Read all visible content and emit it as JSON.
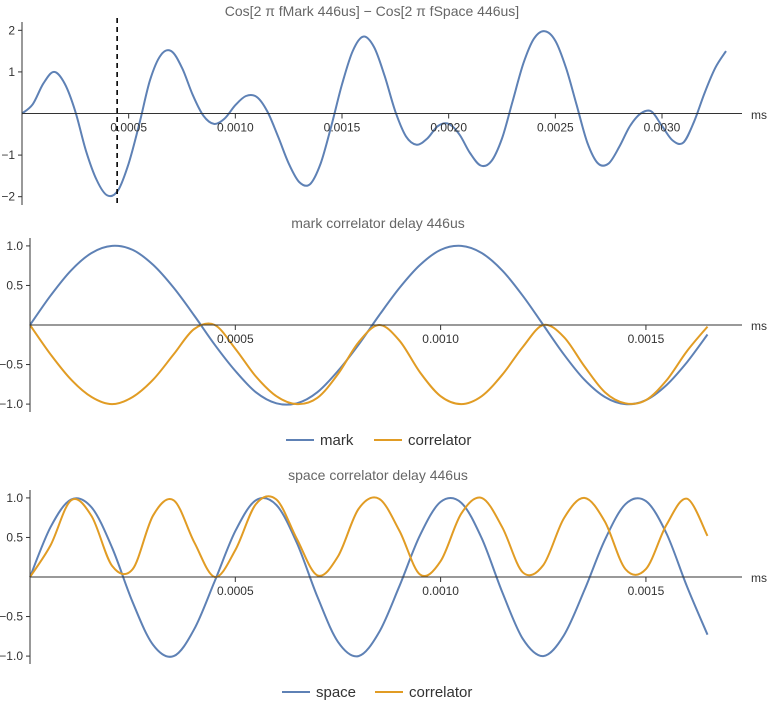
{
  "chart_data": [
    {
      "type": "line",
      "title": "Cos[2 π fMark  446us] −  Cos[2 π fSpace  446us]",
      "xunit": "ms",
      "xlim": [
        0,
        0.0033
      ],
      "ylim": [
        -2.2,
        2.2
      ],
      "xticks": [
        0.0005,
        0.001,
        0.0015,
        0.002,
        0.0025,
        0.003
      ],
      "xtick_labels": [
        "0.0005",
        "0.0010",
        "0.0015",
        "0.0020",
        "0.0025",
        "0.0030"
      ],
      "yticks": [
        2,
        1,
        -1,
        -2
      ],
      "ytick_labels": [
        "2",
        "1",
        "−1",
        "−2"
      ],
      "marker_line_x": 0.000446,
      "series": [
        {
          "color": "#5e81b5",
          "x": [
            0,
            5e-05,
            0.0001,
            0.00015,
            0.0002,
            0.00025,
            0.0003,
            0.00035,
            0.0004,
            0.00045,
            0.0005,
            0.00055,
            0.0006,
            0.00065,
            0.0007,
            0.00075,
            0.0008,
            0.00085,
            0.0009,
            0.00095,
            0.001,
            0.00105,
            0.0011,
            0.00115,
            0.0012,
            0.00125,
            0.0013,
            0.00135,
            0.0014,
            0.00145,
            0.0015,
            0.00155,
            0.0016,
            0.00165,
            0.0017,
            0.00175,
            0.0018,
            0.00185,
            0.0019,
            0.00195,
            0.002,
            0.00205,
            0.0021,
            0.00215,
            0.0022,
            0.00225,
            0.0023,
            0.00235,
            0.0024,
            0.00245,
            0.0025,
            0.00255,
            0.0026,
            0.00265,
            0.0027,
            0.00275,
            0.0028,
            0.00285,
            0.0029,
            0.00295,
            0.003,
            0.00305,
            0.0031,
            0.00315,
            0.0032,
            0.00325,
            0.0033
          ],
          "y": [
            0,
            0.22,
            0.72,
            1.0,
            0.72,
            0.05,
            -0.9,
            -1.6,
            -1.97,
            -1.85,
            -1.2,
            -0.25,
            0.8,
            1.4,
            1.5,
            1.1,
            0.45,
            -0.05,
            -0.25,
            -0.12,
            0.2,
            0.42,
            0.4,
            0.05,
            -0.55,
            -1.2,
            -1.65,
            -1.7,
            -1.2,
            -0.3,
            0.7,
            1.5,
            1.85,
            1.6,
            0.9,
            0.05,
            -0.55,
            -0.75,
            -0.6,
            -0.3,
            -0.25,
            -0.5,
            -0.95,
            -1.25,
            -1.15,
            -0.6,
            0.3,
            1.2,
            1.8,
            1.98,
            1.75,
            1.1,
            0.2,
            -0.7,
            -1.2,
            -1.2,
            -0.8,
            -0.3,
            0.0,
            0.05,
            -0.3,
            -0.65,
            -0.7,
            -0.2,
            0.5,
            1.1,
            1.5
          ]
        }
      ]
    },
    {
      "type": "line",
      "title": "mark correlator delay 446us",
      "xunit": "ms",
      "xlim": [
        0,
        0.001695
      ],
      "ylim": [
        -1.1,
        1.1
      ],
      "xticks": [
        0.0005,
        0.001,
        0.0015
      ],
      "xtick_labels": [
        "0.0005",
        "0.0010",
        "0.0015"
      ],
      "yticks": [
        1.0,
        0.5,
        -0.5,
        -1.0
      ],
      "ytick_labels": [
        "1.0",
        "0.5",
        "−0.5",
        "−1.0"
      ],
      "series": [
        {
          "name": "mark",
          "color": "#5e81b5",
          "x": [
            0,
            5e-05,
            0.0001,
            0.00015,
            0.0002,
            0.00025,
            0.0003,
            0.00035,
            0.0004,
            0.00045,
            0.0005,
            0.00055,
            0.0006,
            0.00065,
            0.0007,
            0.00075,
            0.0008,
            0.00085,
            0.0009,
            0.00095,
            0.001,
            0.00105,
            0.0011,
            0.00115,
            0.0012,
            0.00125,
            0.0013,
            0.00135,
            0.0014,
            0.00145,
            0.0015,
            0.00155,
            0.0016,
            0.00165,
            0.0017
          ],
          "y": [
            0,
            0.37,
            0.69,
            0.91,
            1.0,
            0.95,
            0.76,
            0.47,
            0.12,
            -0.25,
            -0.58,
            -0.85,
            -0.99,
            -0.99,
            -0.85,
            -0.58,
            -0.25,
            0.12,
            0.47,
            0.76,
            0.95,
            1.0,
            0.91,
            0.69,
            0.37,
            0.0,
            -0.37,
            -0.69,
            -0.91,
            -1.0,
            -0.95,
            -0.76,
            -0.47,
            -0.12,
            0.25
          ]
        },
        {
          "name": "correlator",
          "color": "#e19c24",
          "x": [
            0,
            5e-05,
            0.0001,
            0.00015,
            0.0002,
            0.00025,
            0.0003,
            0.00035,
            0.0004,
            0.00045,
            0.0005,
            0.00055,
            0.0006,
            0.00065,
            0.0007,
            0.00075,
            0.0008,
            0.00085,
            0.0009,
            0.00095,
            0.001,
            0.00105,
            0.0011,
            0.00115,
            0.0012,
            0.00125,
            0.0013,
            0.00135,
            0.0014,
            0.00145,
            0.0015,
            0.00155,
            0.0016,
            0.00165,
            0.0017
          ],
          "y": [
            0,
            -0.37,
            -0.69,
            -0.91,
            -1.0,
            -0.91,
            -0.69,
            -0.37,
            -0.05,
            0.0,
            -0.3,
            -0.65,
            -0.9,
            -1.0,
            -0.92,
            -0.62,
            -0.22,
            0.0,
            -0.2,
            -0.6,
            -0.9,
            -1.0,
            -0.9,
            -0.63,
            -0.28,
            0.0,
            -0.15,
            -0.52,
            -0.85,
            -0.99,
            -0.95,
            -0.7,
            -0.33,
            -0.02,
            -0.01
          ]
        }
      ]
    },
    {
      "type": "line",
      "title": "space correlator delay 446us",
      "xunit": "ms",
      "xlim": [
        0,
        0.001695
      ],
      "ylim": [
        -1.1,
        1.1
      ],
      "xticks": [
        0.0005,
        0.001,
        0.0015
      ],
      "xtick_labels": [
        "0.0005",
        "0.0010",
        "0.0015"
      ],
      "yticks": [
        1.0,
        0.5,
        -0.5,
        -1.0
      ],
      "ytick_labels": [
        "1.0",
        "0.5",
        "−0.5",
        "−1.0"
      ],
      "series": [
        {
          "name": "space",
          "color": "#5e81b5",
          "x": [
            0,
            5e-05,
            0.0001,
            0.00015,
            0.0002,
            0.00025,
            0.0003,
            0.00035,
            0.0004,
            0.00045,
            0.0005,
            0.00055,
            0.0006,
            0.00065,
            0.0007,
            0.00075,
            0.0008,
            0.00085,
            0.0009,
            0.00095,
            0.001,
            0.00105,
            0.0011,
            0.00115,
            0.0012,
            0.00125,
            0.0013,
            0.00135,
            0.0014,
            0.00145,
            0.0015,
            0.00155,
            0.0016,
            0.00165,
            0.0017
          ],
          "y": [
            0,
            0.63,
            0.98,
            0.88,
            0.37,
            -0.32,
            -0.86,
            -1.0,
            -0.66,
            -0.05,
            0.58,
            0.97,
            0.91,
            0.43,
            -0.25,
            -0.82,
            -1.0,
            -0.7,
            -0.11,
            0.53,
            0.95,
            0.94,
            0.49,
            -0.19,
            -0.78,
            -1.0,
            -0.74,
            -0.17,
            0.47,
            0.92,
            0.96,
            0.55,
            -0.12,
            -0.73,
            -0.87
          ]
        },
        {
          "name": "correlator",
          "color": "#e19c24",
          "x": [
            0,
            5e-05,
            0.0001,
            0.00015,
            0.0002,
            0.00025,
            0.0003,
            0.00035,
            0.0004,
            0.00045,
            0.0005,
            0.00055,
            0.0006,
            0.00065,
            0.0007,
            0.00075,
            0.0008,
            0.00085,
            0.0009,
            0.00095,
            0.001,
            0.00105,
            0.0011,
            0.00115,
            0.0012,
            0.00125,
            0.0013,
            0.00135,
            0.0014,
            0.00145,
            0.0015,
            0.00155,
            0.0016,
            0.00165,
            0.0017
          ],
          "y": [
            0,
            0.4,
            0.97,
            0.77,
            0.14,
            0.1,
            0.78,
            0.97,
            0.44,
            0.0,
            0.34,
            0.92,
            0.98,
            0.48,
            0.02,
            0.26,
            0.86,
            0.99,
            0.58,
            0.03,
            0.2,
            0.8,
            1.0,
            0.63,
            0.06,
            0.15,
            0.74,
            1.0,
            0.7,
            0.1,
            0.1,
            0.66,
            0.99,
            0.52,
            0.7
          ]
        }
      ]
    }
  ]
}
